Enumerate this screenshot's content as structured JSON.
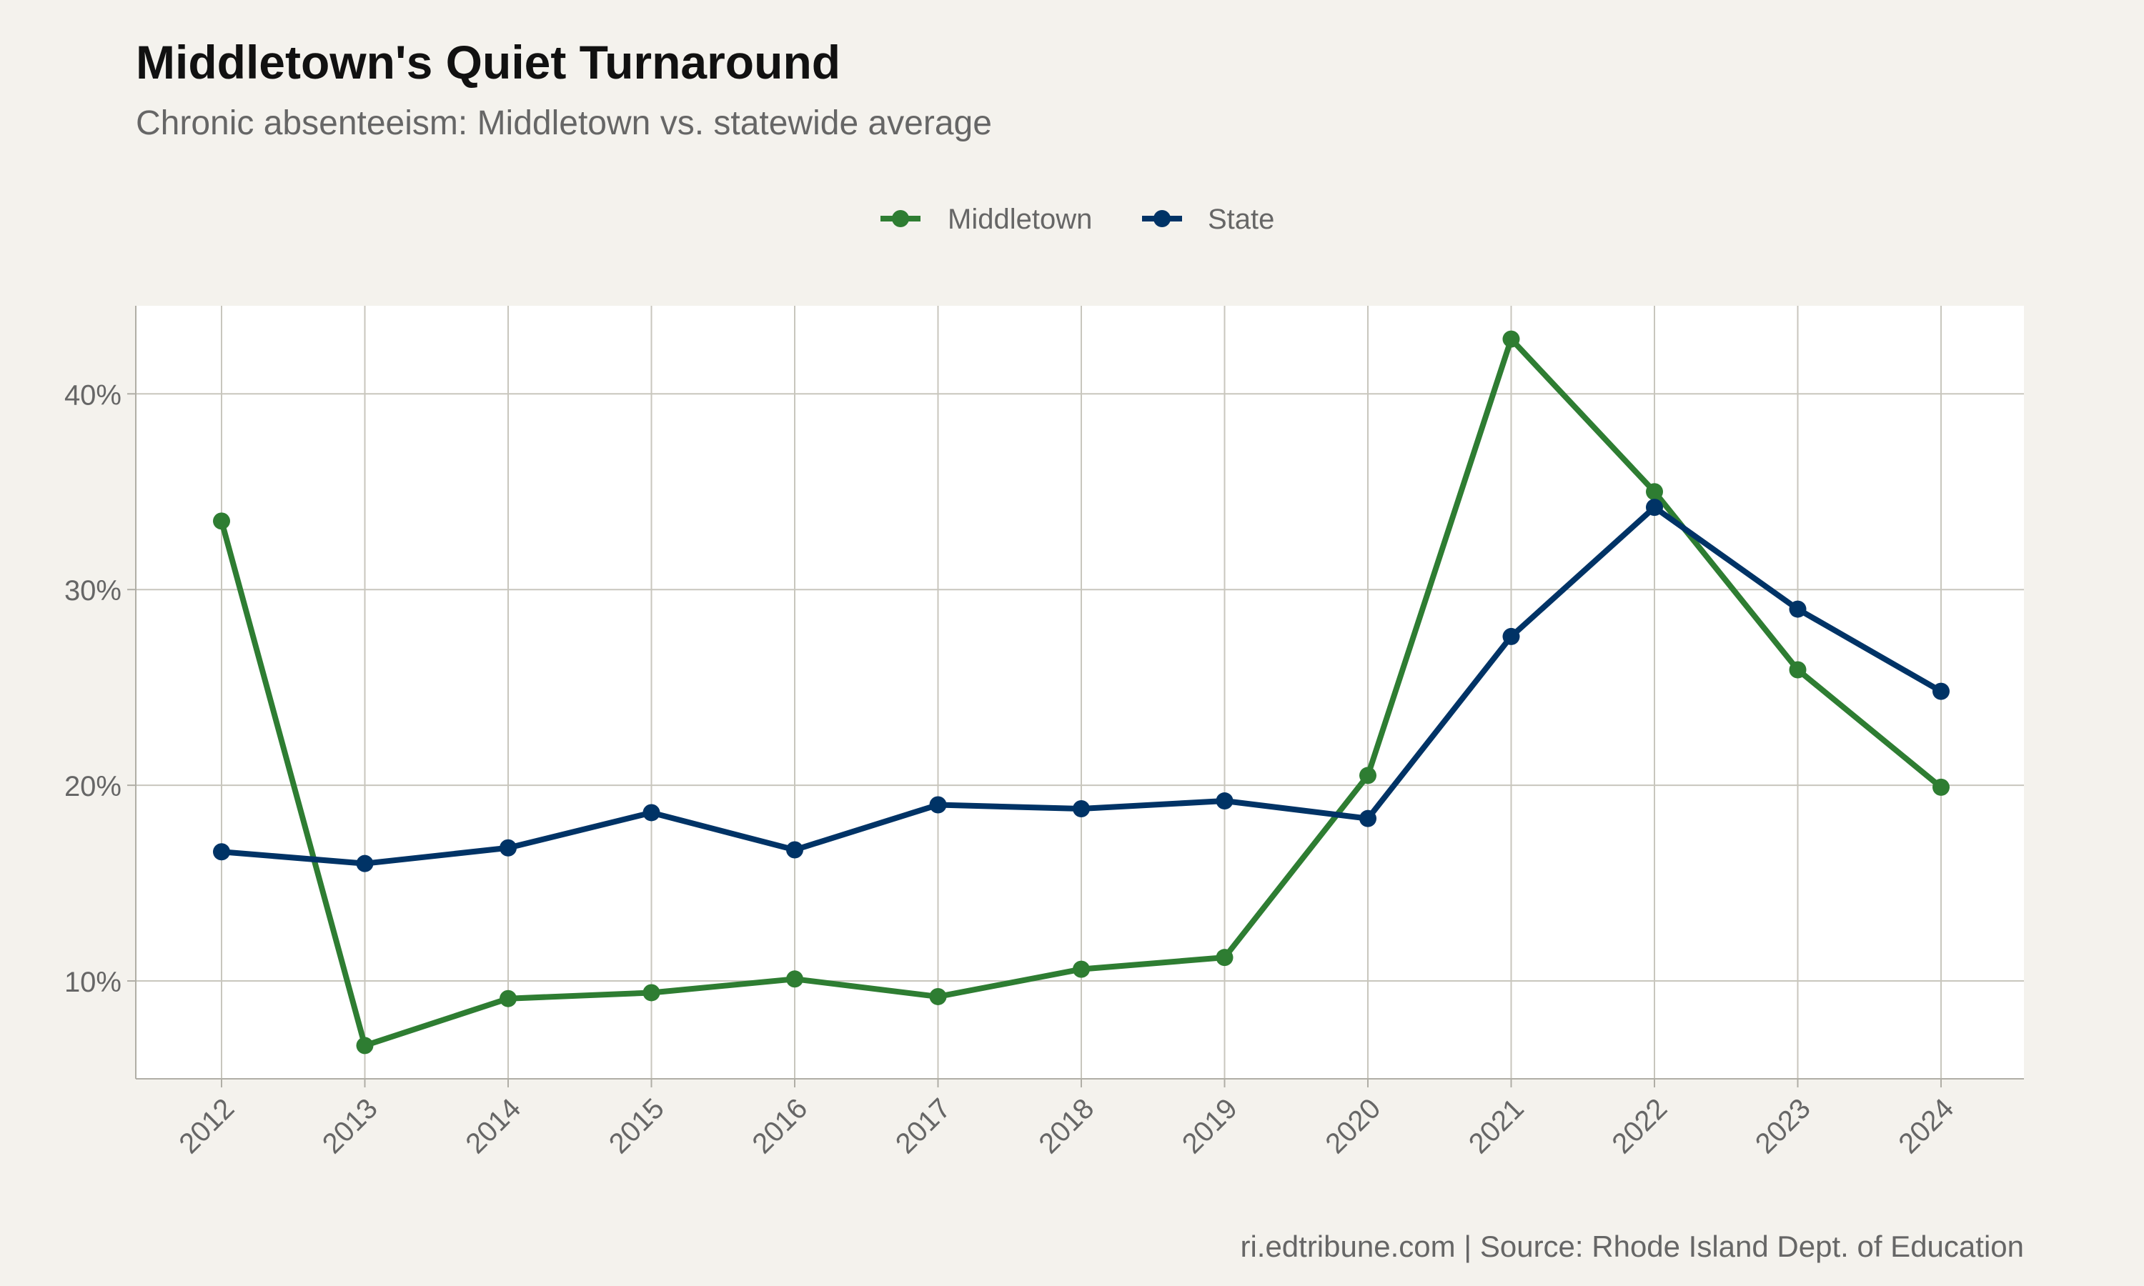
{
  "chart_data": {
    "type": "line",
    "title": "Middletown's Quiet Turnaround",
    "subtitle": "Chronic absenteeism: Middletown vs. statewide average",
    "caption": "ri.edtribune.com | Source: Rhode Island Dept. of Education",
    "x": [
      "2012",
      "2013",
      "2014",
      "2015",
      "2016",
      "2017",
      "2018",
      "2019",
      "2020",
      "2021",
      "2022",
      "2023",
      "2024"
    ],
    "y_ticks": [
      10,
      20,
      30,
      40
    ],
    "y_tick_labels": [
      "10%",
      "20%",
      "30%",
      "40%"
    ],
    "ylim": [
      5,
      44.5
    ],
    "grid": true,
    "legend_position": "top-center",
    "series": [
      {
        "name": "Middletown",
        "color": "#2e7d32",
        "values": [
          33.5,
          6.7,
          9.1,
          9.4,
          10.1,
          9.2,
          10.6,
          11.2,
          20.5,
          42.8,
          35.0,
          25.9,
          19.9
        ]
      },
      {
        "name": "State",
        "color": "#003366",
        "values": [
          16.6,
          16.0,
          16.8,
          18.6,
          16.7,
          19.0,
          18.8,
          19.2,
          18.3,
          27.6,
          34.2,
          29.0,
          24.8
        ]
      }
    ]
  }
}
